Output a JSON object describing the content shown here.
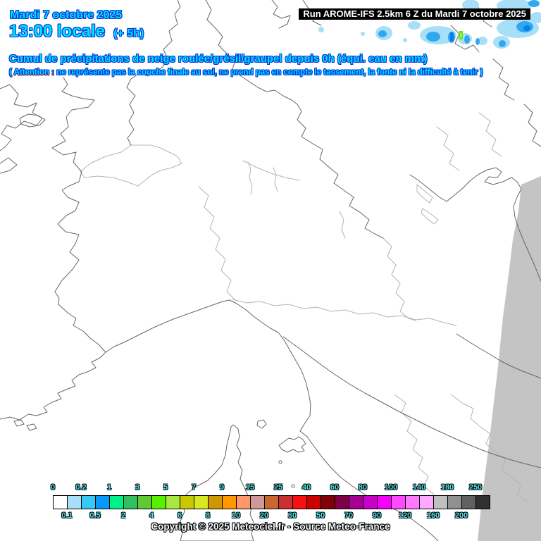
{
  "header": {
    "date": "Mardi 7 octobre 2025",
    "time": "13:00 locale",
    "offset": "(+ 5h)",
    "run": "Run AROME-IFS 2.5km 6 Z du Mardi 7 octobre 2025"
  },
  "title": "Cumul de précipitations de neige roulée/grésil/graupel depuis 0h (équi. eau en mm)",
  "warning": {
    "prefix": "( Attention :",
    "rest": " ne représente pas la couche finale au sol, ne prend pas en compte le tassement, la fonte ni la difficulté à tenir )"
  },
  "legend": {
    "top_labels": [
      "0",
      "0.2",
      "1",
      "3",
      "5",
      "7",
      "9",
      "15",
      "25",
      "40",
      "60",
      "80",
      "100",
      "140",
      "180",
      "250"
    ],
    "bottom_labels": [
      "0.1",
      "0.5",
      "2",
      "4",
      "6",
      "8",
      "10",
      "20",
      "30",
      "50",
      "70",
      "90",
      "120",
      "160",
      "200"
    ],
    "cell_colors": [
      "#FFFFFF",
      "#A8DFF8",
      "#38C8F8",
      "#0898F8",
      "#00F088",
      "#30C060",
      "#60C830",
      "#58F000",
      "#A8E840",
      "#C8C800",
      "#D8E820",
      "#D09800",
      "#FF9800",
      "#FF9868",
      "#D09898",
      "#C86830",
      "#C83030",
      "#F81010",
      "#C80000",
      "#800008",
      "#800048",
      "#A80090",
      "#C800C8",
      "#F800F8",
      "#FF48FF",
      "#FF78FF",
      "#FFA8FF",
      "#C0C0C0",
      "#909090",
      "#606060",
      "#303030"
    ]
  },
  "footer": {
    "copyright": "Copyright © 2025 Meteociel.fr - Source Meteo-France"
  },
  "colors": {
    "domain_mask": "#C4C4C4",
    "precip_light": "#A8DFF8",
    "precip_medium": "#30A8F0",
    "precip_dark": "#0880E8",
    "precip_green": "#58F000",
    "precip_yellow_green": "#A8E840"
  }
}
